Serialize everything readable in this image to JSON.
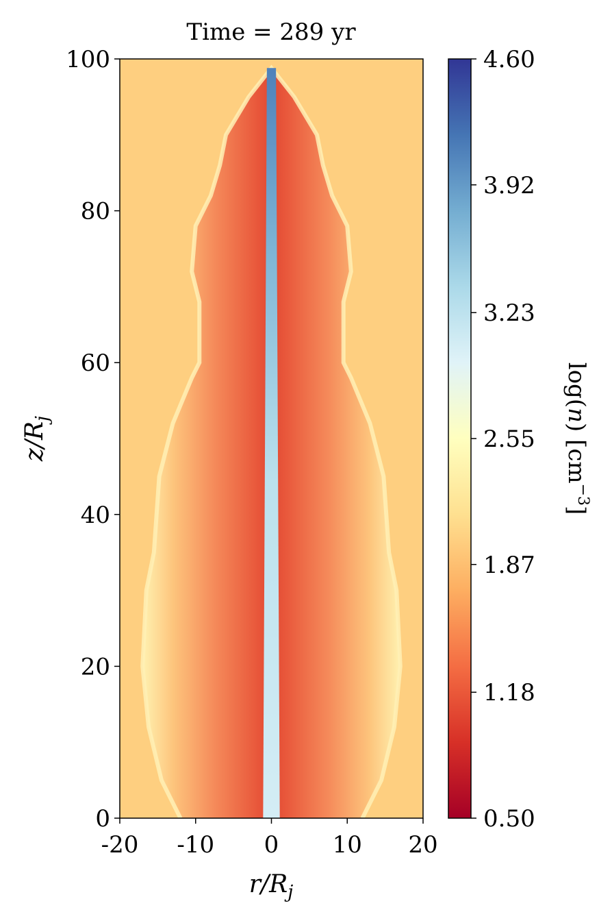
{
  "chart_data": {
    "type": "heatmap",
    "title": "Time = 289 yr",
    "xlabel": "r/R_j",
    "ylabel": "z/R_j",
    "xlim": [
      -20,
      20
    ],
    "ylim": [
      0,
      100
    ],
    "x_ticks": [
      -20,
      -10,
      0,
      10,
      20
    ],
    "x_tick_labels": [
      "-20",
      "-10",
      "0",
      "10",
      "20"
    ],
    "y_ticks": [
      0,
      20,
      40,
      60,
      80,
      100
    ],
    "y_tick_labels": [
      "0",
      "20",
      "40",
      "60",
      "80",
      "100"
    ],
    "colorbar": {
      "label": "log(n) [cm^-3]",
      "range": [
        0.5,
        4.6
      ],
      "ticks": [
        0.5,
        1.18,
        1.87,
        2.55,
        3.23,
        3.92,
        4.6
      ],
      "tick_labels": [
        "0.50",
        "1.18",
        "1.87",
        "2.55",
        "3.23",
        "3.92",
        "4.60"
      ],
      "colormap": "RdYlBu",
      "colors": [
        "#a50026",
        "#d73027",
        "#f46d43",
        "#fdae61",
        "#fee090",
        "#ffffbf",
        "#e0f3f8",
        "#abd9e9",
        "#74add1",
        "#4575b4",
        "#313695"
      ]
    },
    "ambient_value": 2.0,
    "jet_core_value": 3.05,
    "cocoon_boundary": [
      {
        "z": 0,
        "r": 12.0
      },
      {
        "z": 5,
        "r": 14.5
      },
      {
        "z": 12,
        "r": 16.2
      },
      {
        "z": 20,
        "r": 17.0
      },
      {
        "z": 30,
        "r": 16.5
      },
      {
        "z": 35,
        "r": 15.5
      },
      {
        "z": 45,
        "r": 14.8
      },
      {
        "z": 52,
        "r": 13.0
      },
      {
        "z": 58,
        "r": 10.5
      },
      {
        "z": 60,
        "r": 9.5
      },
      {
        "z": 68,
        "r": 9.5
      },
      {
        "z": 72,
        "r": 10.5
      },
      {
        "z": 78,
        "r": 10.0
      },
      {
        "z": 82,
        "r": 8.0
      },
      {
        "z": 86,
        "r": 6.8
      },
      {
        "z": 90,
        "r": 6.0
      },
      {
        "z": 95,
        "r": 3.0
      },
      {
        "z": 98.8,
        "r": 0.0
      }
    ]
  }
}
